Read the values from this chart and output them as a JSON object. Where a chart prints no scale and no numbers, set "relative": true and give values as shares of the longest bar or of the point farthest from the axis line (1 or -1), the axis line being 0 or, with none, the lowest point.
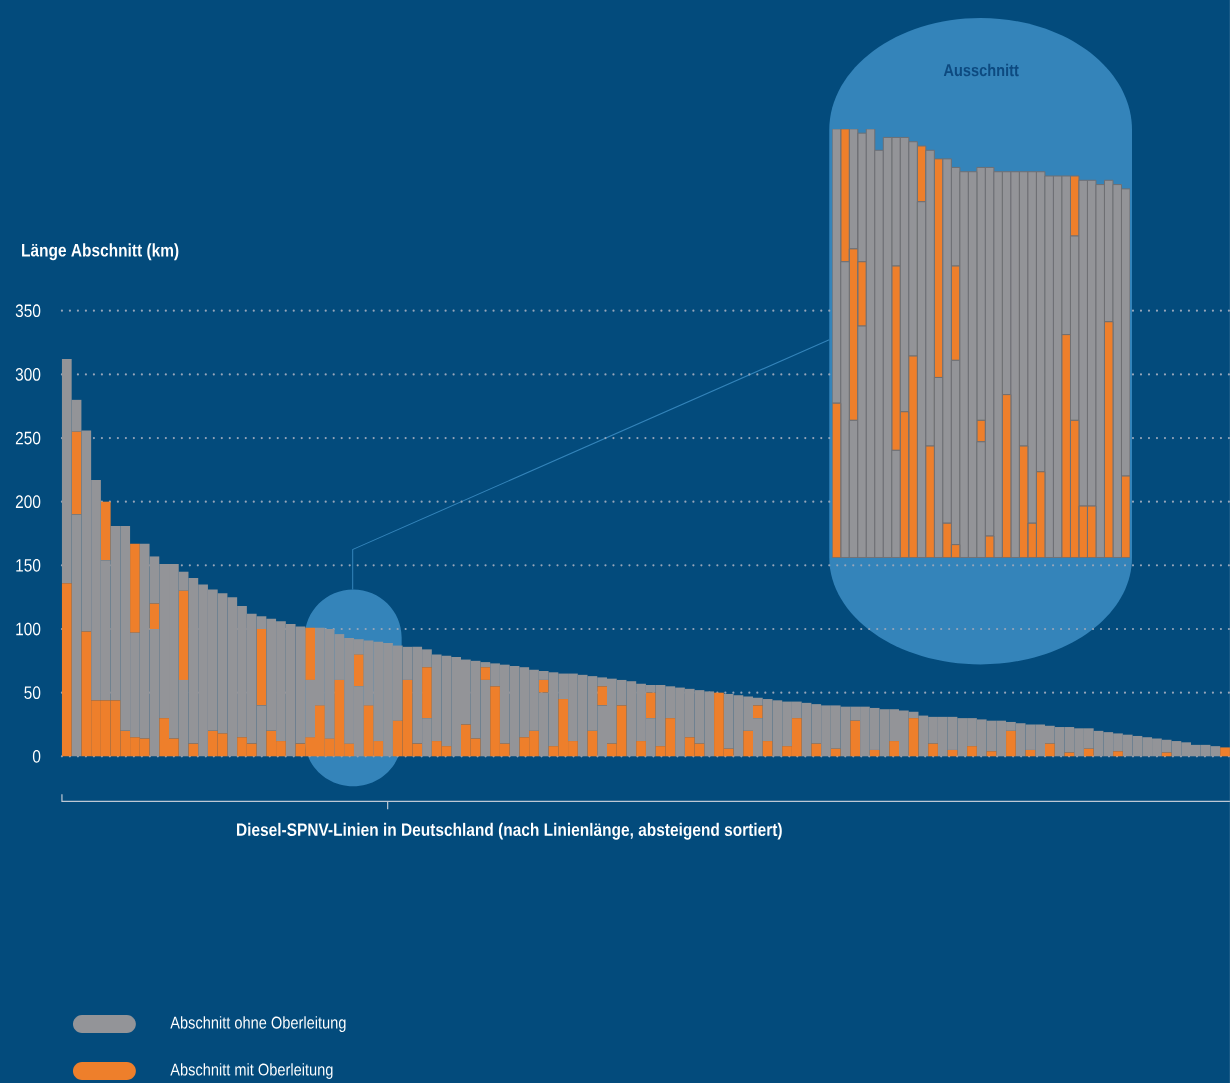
{
  "chart_data": [
    {
      "type": "bar",
      "stacked": true,
      "xlabel": "Diesel-SPNV-Linien in Deutschland (nach Linienlänge, absteigend sortiert)",
      "ylabel": "Länge Abschnitt (km)",
      "categories": [
        null,
        null,
        null,
        null,
        null,
        null,
        null,
        null,
        null,
        null,
        null,
        null,
        null,
        null,
        null,
        null,
        null,
        null,
        null,
        null,
        null,
        null,
        null,
        null,
        null,
        null,
        null,
        null,
        null,
        null,
        null,
        null,
        null,
        null,
        null,
        null,
        null,
        null,
        null,
        null,
        null,
        null,
        null,
        null,
        null,
        null,
        null,
        null,
        null,
        null,
        null,
        null,
        null,
        null,
        null,
        null,
        null,
        null,
        null,
        null,
        null,
        null,
        null,
        null,
        null,
        null,
        null,
        null,
        null,
        null,
        null,
        null,
        null,
        null,
        null,
        null,
        null,
        null,
        null,
        null,
        null,
        null,
        null,
        null,
        null,
        null,
        null,
        null,
        null,
        null,
        null,
        null,
        null,
        null,
        null,
        null,
        null,
        null,
        null,
        null,
        null,
        null,
        null,
        null,
        null,
        null,
        null,
        null,
        null,
        null,
        null,
        null,
        null,
        null,
        null,
        null,
        null,
        null,
        null,
        null
      ],
      "series": [
        {
          "name": "Abschnitt mit Oberleitung",
          "color": "#ee7f2b",
          "values": [
            136,
            0,
            98,
            44,
            44,
            44,
            20,
            15,
            14,
            0,
            30,
            14,
            0,
            10,
            0,
            20,
            18,
            0,
            15,
            10,
            0,
            20,
            12,
            0,
            10,
            15,
            40,
            14,
            60,
            10,
            0,
            40,
            12,
            0,
            28,
            60,
            10,
            0,
            12,
            8,
            0,
            25,
            14,
            0,
            55,
            10,
            0,
            15,
            20,
            0,
            8,
            45,
            12,
            0,
            20,
            0,
            10,
            40,
            0,
            12,
            0,
            8,
            30,
            0,
            15,
            10,
            0,
            50,
            6,
            0,
            20,
            0,
            12,
            0,
            8,
            30,
            0,
            10,
            0,
            6,
            0,
            28,
            0,
            5,
            0,
            12,
            0,
            30,
            0,
            10,
            0,
            5,
            0,
            8,
            0,
            4,
            0,
            20,
            0,
            5,
            0,
            10,
            0,
            3,
            0,
            6,
            0,
            0,
            4,
            0,
            0,
            0,
            0,
            3,
            0,
            0,
            0,
            0,
            0,
            7
          ]
        },
        {
          "name": "Abschnitt ohne Oberleitung",
          "color": "#939498",
          "values": [
            176,
            190,
            158,
            173,
            110,
            137,
            161,
            82,
            153,
            100,
            121,
            137,
            60,
            130,
            135,
            111,
            110,
            125,
            103,
            102,
            40,
            88,
            94,
            104,
            92,
            45,
            61,
            86,
            36,
            83,
            55,
            51,
            78,
            89,
            59,
            26,
            76,
            30,
            68,
            71,
            78,
            51,
            61,
            60,
            18,
            62,
            71,
            55,
            48,
            50,
            58,
            20,
            53,
            64,
            43,
            40,
            51,
            20,
            59,
            45,
            30,
            48,
            25,
            54,
            38,
            42,
            51,
            0,
            43,
            48,
            27,
            30,
            33,
            44,
            35,
            13,
            42,
            31,
            40,
            34,
            39,
            11,
            39,
            33,
            37,
            25,
            36,
            5,
            32,
            21,
            31,
            26,
            30,
            22,
            29,
            24,
            28,
            7,
            26,
            20,
            25,
            14,
            23,
            20,
            22,
            16,
            20,
            19,
            14,
            17,
            16,
            15,
            14,
            10,
            12,
            11,
            9,
            9,
            8,
            0
          ]
        },
        {
          "color": "#ee7f2b",
          "values": [
            0,
            65,
            0,
            0,
            46,
            0,
            0,
            70,
            0,
            20,
            0,
            0,
            70,
            0,
            0,
            0,
            0,
            0,
            0,
            0,
            60,
            0,
            0,
            0,
            0,
            41,
            0,
            0,
            0,
            0,
            25,
            0,
            0,
            0,
            0,
            0,
            0,
            40,
            0,
            0,
            0,
            0,
            0,
            10,
            0,
            0,
            0,
            0,
            0,
            10,
            0,
            0,
            0,
            0,
            0,
            15,
            0,
            0,
            0,
            0,
            20,
            0,
            0,
            0,
            0,
            0,
            0,
            0,
            0,
            0,
            0,
            10,
            0,
            0,
            0,
            0,
            0,
            0,
            0,
            0,
            0,
            0,
            0,
            0,
            0,
            0,
            0,
            0,
            0,
            0,
            0,
            0,
            0,
            0,
            0,
            0,
            0,
            0,
            0,
            0,
            0,
            0,
            0,
            0,
            0,
            0,
            0,
            0,
            0,
            0,
            0,
            0,
            0,
            0,
            0,
            0,
            0,
            0,
            0,
            0
          ]
        },
        {
          "color": "#939498",
          "values": [
            0,
            25,
            0,
            0,
            0,
            0,
            0,
            0,
            0,
            37,
            0,
            0,
            15,
            0,
            0,
            0,
            0,
            0,
            0,
            0,
            10,
            0,
            0,
            0,
            0,
            0,
            0,
            0,
            0,
            0,
            12,
            0,
            0,
            0,
            0,
            0,
            0,
            14,
            0,
            0,
            0,
            0,
            0,
            4,
            0,
            0,
            0,
            0,
            0,
            7,
            0,
            0,
            0,
            0,
            0,
            7,
            0,
            0,
            0,
            0,
            6,
            0,
            0,
            0,
            0,
            0,
            0,
            0,
            0,
            0,
            0,
            6,
            0,
            0,
            0,
            0,
            0,
            0,
            0,
            0,
            0,
            0,
            0,
            0,
            0,
            0,
            0,
            0,
            0,
            0,
            0,
            0,
            0,
            0,
            0,
            0,
            0,
            0,
            0,
            0,
            0,
            0,
            0,
            0,
            0,
            0,
            0,
            0,
            0,
            0,
            0,
            0,
            0,
            0,
            0,
            0,
            0,
            0,
            0,
            0
          ]
        }
      ],
      "ylim": [
        0,
        350
      ],
      "yticks": [
        0,
        50,
        100,
        150,
        200,
        250,
        300,
        350
      ],
      "grid": "y",
      "legend": "bottom left",
      "tick_labels": "y"
    },
    {
      "type": "bar",
      "stacked": true,
      "relative": true,
      "title": "Ausschnitt",
      "tick_labels": false,
      "categories": [
        null,
        null,
        null,
        null,
        null,
        null,
        null,
        null,
        null,
        null,
        null,
        null,
        null,
        null,
        null,
        null,
        null,
        null,
        null,
        null,
        null,
        null,
        null,
        null,
        null,
        null,
        null,
        null,
        null,
        null,
        null,
        null,
        null,
        null,
        null
      ],
      "series": [
        {
          "color": "#ee7f2b",
          "values": [
            0.36,
            0,
            0,
            0,
            0,
            0,
            0,
            0,
            0.34,
            0.47,
            0,
            0.26,
            0,
            0.08,
            0.03,
            0,
            0,
            0,
            0.05,
            0,
            0.38,
            0,
            0.26,
            0.08,
            0.2,
            0,
            0,
            0.52,
            0.32,
            0.12,
            0.12,
            0,
            0.55,
            0,
            0.19
          ]
        },
        {
          "color": "#939498",
          "values": [
            0.64,
            0.69,
            0.32,
            0.54,
            1.0,
            0.95,
            0.98,
            0.25,
            0.64,
            0.5,
            0.83,
            0.69,
            0.42,
            0.85,
            0.43,
            0.9,
            0.9,
            0.27,
            0.86,
            0.9,
            0.52,
            0.9,
            0.64,
            0.82,
            0.7,
            0.89,
            0.89,
            0.37,
            0.43,
            0.76,
            0.76,
            0.87,
            0.33,
            0.87,
            0.67
          ]
        },
        {
          "color": "#ee7f2b",
          "values": [
            0,
            0.31,
            0.4,
            0.15,
            0,
            0,
            0,
            0.43,
            0,
            0,
            0.13,
            0,
            0.51,
            0,
            0.22,
            0,
            0,
            0.05,
            0,
            0,
            0,
            0,
            0,
            0,
            0,
            0,
            0,
            0,
            0.14,
            0,
            0,
            0,
            0,
            0,
            0
          ]
        },
        {
          "color": "#939498",
          "values": [
            0,
            0,
            0.28,
            0.3,
            0,
            0,
            0,
            0.3,
            0,
            0,
            0,
            0,
            0,
            0,
            0.23,
            0,
            0,
            0.59,
            0,
            0,
            0,
            0,
            0,
            0,
            0,
            0,
            0,
            0,
            0,
            0,
            0,
            0,
            0,
            0,
            0
          ]
        }
      ]
    }
  ]
}
